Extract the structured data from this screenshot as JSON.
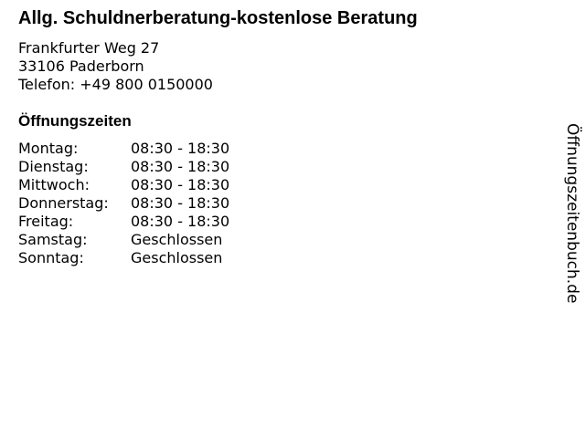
{
  "title": "Allg. Schuldnerberatung-kostenlose Beratung",
  "address": {
    "street": "Frankfurter Weg 27",
    "city": "33106 Paderborn",
    "phone": "Telefon: +49 800 0150000"
  },
  "hours_heading": "Öffnungszeiten",
  "hours": [
    {
      "day": "Montag:",
      "time": "08:30 - 18:30"
    },
    {
      "day": "Dienstag:",
      "time": "08:30 - 18:30"
    },
    {
      "day": "Mittwoch:",
      "time": "08:30 - 18:30"
    },
    {
      "day": "Donnerstag:",
      "time": "08:30 - 18:30"
    },
    {
      "day": "Freitag:",
      "time": "08:30 - 18:30"
    },
    {
      "day": "Samstag:",
      "time": "Geschlossen"
    },
    {
      "day": "Sonntag:",
      "time": "Geschlossen"
    }
  ],
  "watermark": "Öffnungszeitenbuch.de"
}
